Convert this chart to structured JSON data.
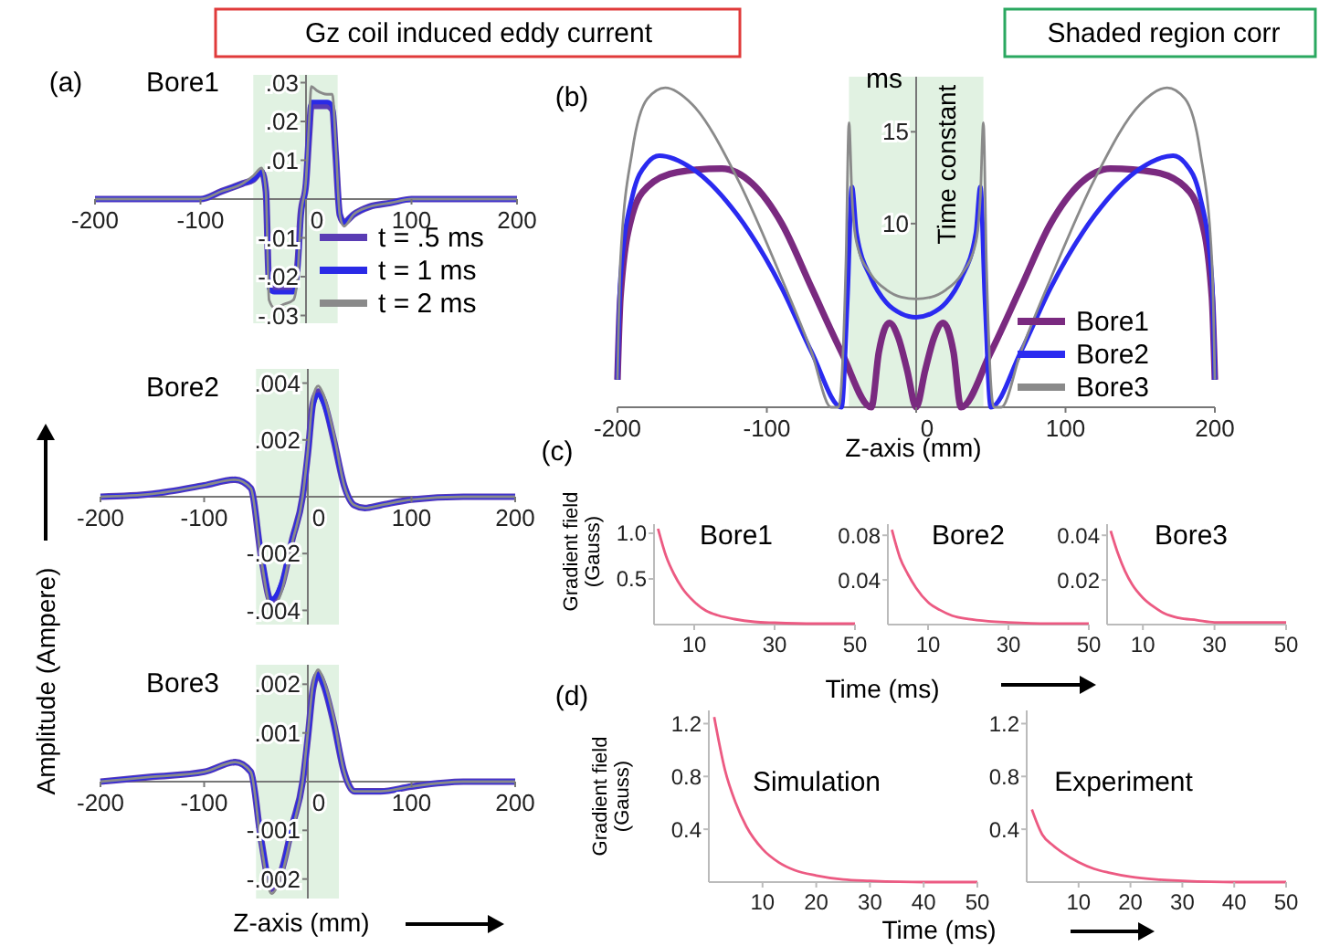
{
  "chart_data": [
    {
      "type": "line",
      "title": "Gz coil induced eddy current",
      "annotations": [
        "(a)",
        "Bore1"
      ],
      "legend": "bottom right",
      "xlim": [
        -200,
        200
      ],
      "ylim": [
        -0.032,
        0.032
      ],
      "xticks": [
        -200,
        -100,
        0,
        100,
        200
      ],
      "yticks": [
        {
          "value": 0.03,
          "label": ".03"
        },
        {
          "value": 0.02,
          "label": ".02"
        },
        {
          "value": 0.01,
          "label": ".01"
        },
        {
          "value": -0.01,
          "label": "-.01"
        },
        {
          "value": -0.02,
          "label": "-.02"
        },
        {
          "value": -0.03,
          "label": "-.03"
        }
      ],
      "bands": [
        {
          "axis": "x",
          "from": -50,
          "to": 30,
          "color": "#d4ecd6"
        }
      ],
      "x": [
        -200,
        -150,
        -100,
        -80,
        -60,
        -50,
        -42,
        -38,
        -35,
        -30,
        -20,
        -12,
        -8,
        -5,
        0,
        3,
        5,
        10,
        20,
        25,
        28,
        32,
        36,
        45,
        60,
        80,
        100,
        150,
        200
      ],
      "series": [
        {
          "name": "t = .5 ms",
          "color": "#5a3cb4",
          "values": [
            0,
            0,
            0,
            0.002,
            0.004,
            0.005,
            0.007,
            0.002,
            -0.022,
            -0.023,
            -0.023,
            -0.023,
            -0.017,
            -0.004,
            0.004,
            0.017,
            0.024,
            0.024,
            0.024,
            0.023,
            0.012,
            -0.004,
            -0.006,
            -0.004,
            -0.002,
            -0.001,
            0,
            0,
            0
          ]
        },
        {
          "name": "t = 1 ms",
          "color": "#2a2ae6",
          "values": [
            0,
            0,
            0,
            0.002,
            0.004,
            0.005,
            0.007,
            0.002,
            -0.023,
            -0.024,
            -0.024,
            -0.024,
            -0.018,
            -0.005,
            0.004,
            0.018,
            0.025,
            0.025,
            0.025,
            0.024,
            0.013,
            -0.004,
            -0.006,
            -0.004,
            -0.002,
            -0.001,
            0,
            0,
            0
          ]
        },
        {
          "name": "t = 2 ms",
          "color": "#8a8a8a",
          "values": [
            0,
            0,
            0,
            0.002,
            0.004,
            0.006,
            0.008,
            0.002,
            -0.026,
            -0.028,
            -0.027,
            -0.026,
            -0.02,
            -0.005,
            0.005,
            0.02,
            0.029,
            0.028,
            0.027,
            0.027,
            0.015,
            -0.004,
            -0.007,
            -0.004,
            -0.002,
            -0.001,
            0,
            0,
            0
          ]
        }
      ]
    },
    {
      "type": "line",
      "title": "Shaded region corr",
      "annotations": [
        "(b)",
        "ms"
      ],
      "xlabel": "Z-axis (mm)",
      "ylabel": "Time constant",
      "legend": "bottom right",
      "xlim": [
        -200,
        200
      ],
      "ylim": [
        0,
        18
      ],
      "xticks": [
        -200,
        -100,
        0,
        100,
        200
      ],
      "yticks": [
        10,
        15
      ],
      "bands": [
        {
          "axis": "x",
          "from": -45,
          "to": 45,
          "color": "#d4ecd6"
        }
      ],
      "series": [
        {
          "name": "Bore1",
          "color": "#7a2a80",
          "x": [
            -200,
            -198,
            -190,
            -180,
            -160,
            -130,
            -110,
            -90,
            -70,
            -50,
            -30,
            -25,
            -18,
            -12,
            -6,
            0,
            6,
            12,
            18,
            25,
            30,
            50,
            70,
            90,
            110,
            130,
            160,
            180,
            190,
            198,
            200
          ],
          "values": [
            1.5,
            6,
            10.5,
            12,
            12.8,
            13,
            12.2,
            10,
            6.5,
            3,
            0,
            3,
            4.6,
            3.8,
            2,
            0,
            2,
            3.8,
            4.6,
            3,
            0,
            3,
            6.5,
            10,
            12.2,
            13,
            12.8,
            12,
            10.5,
            6,
            1.5
          ]
        },
        {
          "name": "Bore2",
          "color": "#2a2af0",
          "x": [
            -200,
            -198,
            -190,
            -180,
            -172,
            -150,
            -120,
            -90,
            -70,
            -50,
            -46,
            -43,
            -40,
            -30,
            -20,
            -10,
            0,
            10,
            20,
            30,
            40,
            43,
            46,
            50,
            70,
            90,
            120,
            150,
            172,
            180,
            190,
            198,
            200
          ],
          "values": [
            1.5,
            7,
            11.5,
            13.3,
            13.7,
            13,
            10.5,
            6.5,
            3,
            0,
            6,
            12,
            9.5,
            7,
            5.7,
            5.1,
            4.9,
            5.1,
            5.7,
            7,
            9.5,
            12,
            6,
            0,
            3,
            6.5,
            10.5,
            13,
            13.7,
            13.3,
            11.5,
            7,
            1.5
          ]
        },
        {
          "name": "Bore3",
          "color": "#8a8a8a",
          "x": [
            -200,
            -198,
            -190,
            -180,
            -168,
            -150,
            -120,
            -90,
            -70,
            -57,
            -52,
            -47,
            -45,
            -43,
            -40,
            -30,
            -20,
            -10,
            0,
            10,
            20,
            30,
            40,
            43,
            45,
            47,
            52,
            57,
            70,
            90,
            120,
            150,
            168,
            180,
            190,
            198,
            200
          ],
          "values": [
            1.5,
            8,
            14,
            16.8,
            17.4,
            16.5,
            12.5,
            7,
            3,
            0,
            0,
            8,
            15.5,
            11.5,
            9,
            7.2,
            6.4,
            6,
            5.9,
            6,
            6.4,
            7.2,
            9,
            11.5,
            15.5,
            8,
            0,
            0,
            3,
            7,
            12.5,
            16.5,
            17.4,
            16.8,
            14,
            8,
            1.5
          ]
        }
      ]
    },
    {
      "type": "line",
      "annotations": [
        "Bore2"
      ],
      "ylabel": "Amplitude (Ampere)",
      "xlim": [
        -200,
        200
      ],
      "ylim": [
        -0.0045,
        0.0045
      ],
      "xticks": [
        -200,
        -100,
        0,
        100,
        200
      ],
      "yticks": [
        {
          "value": 0.004,
          "label": ".004"
        },
        {
          "value": 0.002,
          "label": ".002"
        },
        {
          "value": -0.002,
          "label": "-.002"
        },
        {
          "value": -0.004,
          "label": "-.004"
        }
      ],
      "bands": [
        {
          "axis": "x",
          "from": -50,
          "to": 30,
          "color": "#d4ecd6"
        }
      ],
      "x": [
        -200,
        -150,
        -100,
        -70,
        -55,
        -45,
        -35,
        -25,
        -15,
        -5,
        0,
        5,
        10,
        15,
        25,
        35,
        45,
        55,
        70,
        100,
        150,
        200
      ],
      "series": [
        {
          "color": "#5a3cb4",
          "values": [
            0,
            0.0001,
            0.0004,
            0.0006,
            0.0003,
            -0.0021,
            -0.0037,
            -0.0031,
            -0.0015,
            0,
            0.0015,
            0.0033,
            0.0037,
            0.0034,
            0.002,
            0.0004,
            -0.0003,
            -0.0004,
            -0.0003,
            -0.0001,
            0,
            0
          ]
        },
        {
          "color": "#2a2ae6",
          "values": [
            0,
            0.0001,
            0.0004,
            0.0006,
            0.0003,
            -0.002,
            -0.0036,
            -0.003,
            -0.0015,
            0,
            0.0015,
            0.0032,
            0.0036,
            0.0033,
            0.002,
            0.0004,
            -0.0003,
            -0.0004,
            -0.0003,
            -0.0001,
            0,
            0
          ]
        },
        {
          "color": "#8a8a8a",
          "values": [
            0,
            0.0001,
            0.0004,
            0.0006,
            0.0003,
            -0.0022,
            -0.0039,
            -0.0033,
            -0.0016,
            0,
            0.0016,
            0.0035,
            0.0039,
            0.0036,
            0.0022,
            0.0004,
            -0.0003,
            -0.0004,
            -0.0003,
            -0.0001,
            0,
            0
          ]
        }
      ]
    },
    {
      "type": "line",
      "annotations": [
        "Bore3"
      ],
      "xlabel": "Z-axis (mm)",
      "xlim": [
        -200,
        200
      ],
      "ylim": [
        -0.0024,
        0.0024
      ],
      "xticks": [
        -200,
        -100,
        0,
        100,
        200
      ],
      "yticks": [
        {
          "value": 0.002,
          "label": ".002"
        },
        {
          "value": 0.001,
          "label": ".001"
        },
        {
          "value": -0.001,
          "label": "-.001"
        },
        {
          "value": -0.002,
          "label": "-.002"
        }
      ],
      "bands": [
        {
          "axis": "x",
          "from": -50,
          "to": 30,
          "color": "#d4ecd6"
        }
      ],
      "x": [
        -200,
        -150,
        -100,
        -70,
        -55,
        -45,
        -35,
        -25,
        -15,
        -5,
        0,
        5,
        10,
        15,
        25,
        35,
        45,
        55,
        70,
        100,
        150,
        200
      ],
      "series": [
        {
          "color": "#5a3cb4",
          "values": [
            0,
            0.0001,
            0.0002,
            0.0004,
            0.0002,
            -0.0012,
            -0.0022,
            -0.0018,
            -0.0009,
            0,
            0.0009,
            0.0019,
            0.0022,
            0.002,
            0.0012,
            0.0002,
            -0.0002,
            -0.0002,
            -0.0002,
            -0.0001,
            0,
            0
          ]
        },
        {
          "color": "#2a2ae6",
          "values": [
            0,
            0.0001,
            0.0002,
            0.0004,
            0.0002,
            -0.0012,
            -0.0021,
            -0.0018,
            -0.0009,
            0,
            0.0009,
            0.0019,
            0.0022,
            0.002,
            0.0012,
            0.0002,
            -0.0002,
            -0.0002,
            -0.0002,
            -0.0001,
            0,
            0
          ]
        },
        {
          "color": "#8a8a8a",
          "values": [
            0,
            0.0001,
            0.0002,
            0.0004,
            0.0002,
            -0.0013,
            -0.0023,
            -0.0019,
            -0.001,
            0,
            0.001,
            0.002,
            0.0023,
            0.0021,
            0.0013,
            0.0002,
            -0.0002,
            -0.0002,
            -0.0002,
            -0.0001,
            0,
            0
          ]
        }
      ]
    },
    {
      "type": "line",
      "title": "Bore1",
      "annotations": [
        "(c)"
      ],
      "ylabel": "Gradient field (Gauss)",
      "xlim": [
        0,
        50
      ],
      "ylim": [
        0,
        1.1
      ],
      "xticks": [
        10,
        30,
        50
      ],
      "yticks": [
        0.5,
        {
          "value": 1,
          "label": "1.0"
        }
      ],
      "x": [
        1,
        3,
        5,
        7,
        10,
        13,
        16,
        20,
        25,
        30,
        40,
        50
      ],
      "series": [
        {
          "color": "#ec5a82",
          "values": [
            1.05,
            0.75,
            0.55,
            0.4,
            0.25,
            0.15,
            0.1,
            0.06,
            0.03,
            0.02,
            0.01,
            0.01
          ]
        }
      ]
    },
    {
      "type": "line",
      "title": "Bore2",
      "xlabel": "Time (ms)",
      "xlim": [
        0,
        50
      ],
      "ylim": [
        0,
        0.09
      ],
      "xticks": [
        10,
        30,
        50
      ],
      "yticks": [
        0.04,
        0.08
      ],
      "x": [
        1,
        3,
        5,
        7,
        10,
        13,
        16,
        20,
        25,
        30,
        40,
        50
      ],
      "series": [
        {
          "color": "#ec5a82",
          "values": [
            0.085,
            0.06,
            0.045,
            0.033,
            0.02,
            0.013,
            0.008,
            0.005,
            0.003,
            0.002,
            0.001,
            0.001
          ]
        }
      ]
    },
    {
      "type": "line",
      "title": "Bore3",
      "xlim": [
        0,
        50
      ],
      "ylim": [
        0,
        0.045
      ],
      "xticks": [
        10,
        30,
        50
      ],
      "yticks": [
        0.02,
        0.04
      ],
      "x": [
        1,
        3,
        5,
        7,
        10,
        13,
        16,
        20,
        25,
        30,
        40,
        50
      ],
      "series": [
        {
          "color": "#ec5a82",
          "values": [
            0.042,
            0.032,
            0.024,
            0.018,
            0.012,
            0.008,
            0.005,
            0.003,
            0.002,
            0.001,
            0.001,
            0.001
          ]
        }
      ]
    },
    {
      "type": "line",
      "title": "Simulation",
      "annotations": [
        "(d)"
      ],
      "xlabel": "Time (ms)",
      "ylabel": "Gradient field (Gauss)",
      "xlim": [
        0,
        50
      ],
      "ylim": [
        0,
        1.3
      ],
      "xticks": [
        10,
        20,
        30,
        40,
        50
      ],
      "yticks": [
        0.4,
        0.8,
        1.2
      ],
      "x": [
        1,
        3,
        5,
        7,
        10,
        13,
        16,
        20,
        25,
        30,
        40,
        50
      ],
      "series": [
        {
          "color": "#ec5a82",
          "values": [
            1.25,
            0.85,
            0.6,
            0.42,
            0.25,
            0.15,
            0.09,
            0.05,
            0.02,
            0.01,
            0,
            0
          ]
        }
      ]
    },
    {
      "type": "line",
      "title": "Experiment",
      "xlim": [
        0,
        50
      ],
      "ylim": [
        0,
        1.3
      ],
      "xticks": [
        10,
        20,
        30,
        40,
        50
      ],
      "yticks": [
        0.4,
        0.8,
        1.2
      ],
      "x": [
        1,
        3,
        5,
        7,
        10,
        13,
        16,
        20,
        25,
        30,
        40,
        50
      ],
      "series": [
        {
          "color": "#ec5a82",
          "values": [
            0.55,
            0.36,
            0.28,
            0.22,
            0.15,
            0.1,
            0.07,
            0.04,
            0.02,
            0.01,
            0,
            0
          ]
        }
      ]
    }
  ]
}
